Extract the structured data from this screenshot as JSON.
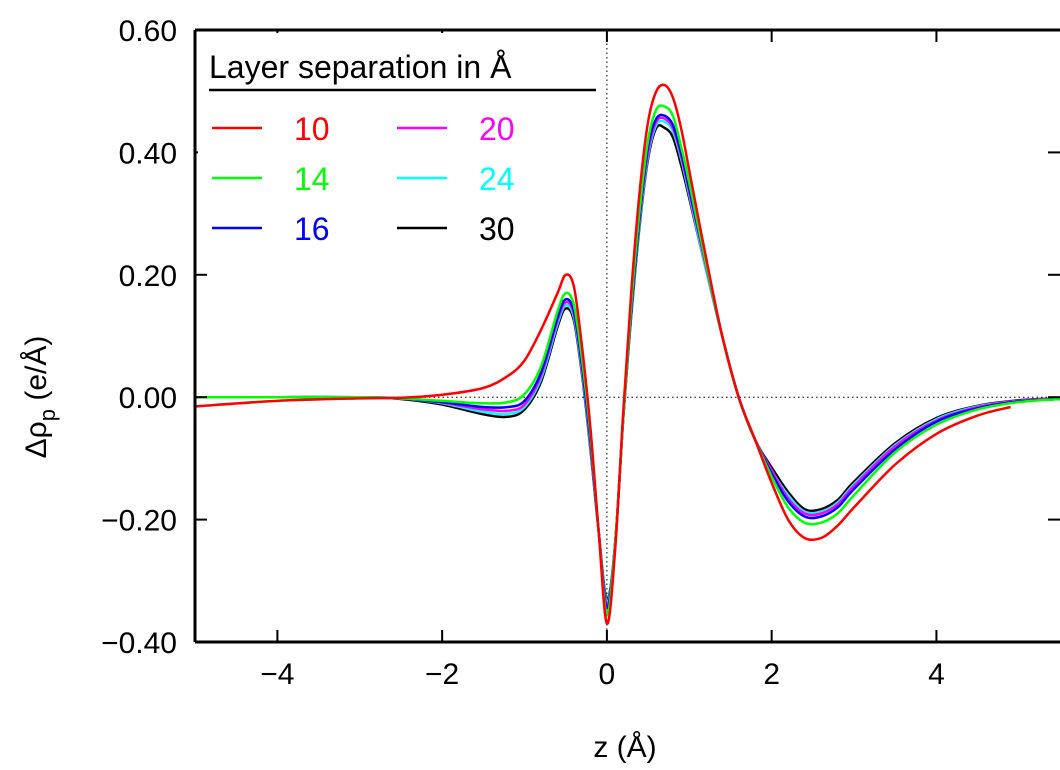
{
  "chart_data": {
    "type": "line",
    "title": "",
    "xlabel": "z (Å)",
    "ylabel_main": "Δρ",
    "ylabel_sub": "p",
    "ylabel_unit": " (e/Å)",
    "xlim": [
      -5,
      5.5
    ],
    "ylim": [
      -0.4,
      0.6
    ],
    "xticks": [
      -4,
      -2,
      0,
      2,
      4
    ],
    "xtick_labels": [
      "−4",
      "−2",
      "0",
      "2",
      "4"
    ],
    "yticks": [
      -0.4,
      -0.2,
      0,
      0.2,
      0.4,
      0.6
    ],
    "ytick_labels": [
      "−0.40",
      "−0.20",
      "0.00",
      "0.20",
      "0.40",
      "0.60"
    ],
    "grid": false,
    "zero_lines": true,
    "legend": {
      "title": "Layer separation in Å",
      "placement": "top-left"
    },
    "series": [
      {
        "name": "10",
        "color": "#ff0000",
        "x": [
          -5,
          -4,
          -3,
          -2.5,
          -2,
          -1.5,
          -1.2,
          -1,
          -0.8,
          -0.6,
          -0.5,
          -0.4,
          -0.3,
          -0.2,
          -0.1,
          0,
          0.1,
          0.2,
          0.3,
          0.4,
          0.5,
          0.6,
          0.7,
          0.8,
          0.9,
          1.0,
          1.2,
          1.4,
          1.6,
          1.8,
          2.0,
          2.2,
          2.4,
          2.6,
          2.8,
          3.0,
          3.5,
          4.0,
          4.5,
          4.9
        ],
        "y": [
          -0.015,
          -0.006,
          -0.002,
          -0.001,
          0.004,
          0.015,
          0.035,
          0.06,
          0.11,
          0.17,
          0.2,
          0.18,
          0.08,
          -0.05,
          -0.22,
          -0.37,
          -0.25,
          -0.02,
          0.18,
          0.34,
          0.45,
          0.5,
          0.51,
          0.49,
          0.44,
          0.37,
          0.23,
          0.1,
          0.0,
          -0.07,
          -0.14,
          -0.2,
          -0.23,
          -0.23,
          -0.21,
          -0.18,
          -0.11,
          -0.06,
          -0.03,
          -0.016
        ]
      },
      {
        "name": "14",
        "color": "#00ff00",
        "x": [
          -5,
          -4,
          -3,
          -2.5,
          -2,
          -1.5,
          -1.2,
          -1,
          -0.8,
          -0.6,
          -0.5,
          -0.4,
          -0.3,
          -0.2,
          -0.1,
          0,
          0.1,
          0.2,
          0.3,
          0.4,
          0.5,
          0.6,
          0.7,
          0.8,
          0.9,
          1.0,
          1.2,
          1.4,
          1.6,
          1.8,
          2.0,
          2.2,
          2.4,
          2.6,
          2.8,
          3.0,
          3.5,
          4.0,
          4.5,
          5.0,
          5.5
        ],
        "y": [
          0.0,
          0.0,
          0.0,
          -0.002,
          -0.006,
          -0.01,
          -0.008,
          0.005,
          0.05,
          0.14,
          0.17,
          0.15,
          0.06,
          -0.06,
          -0.22,
          -0.355,
          -0.24,
          -0.03,
          0.16,
          0.31,
          0.42,
          0.47,
          0.475,
          0.46,
          0.41,
          0.35,
          0.22,
          0.1,
          0.0,
          -0.07,
          -0.13,
          -0.18,
          -0.205,
          -0.205,
          -0.19,
          -0.16,
          -0.09,
          -0.045,
          -0.02,
          -0.008,
          -0.003
        ]
      },
      {
        "name": "16",
        "color": "#0000ff",
        "x": [
          -5,
          -4,
          -3,
          -2.5,
          -2,
          -1.5,
          -1.2,
          -1,
          -0.8,
          -0.6,
          -0.5,
          -0.4,
          -0.3,
          -0.2,
          -0.1,
          0,
          0.1,
          0.2,
          0.3,
          0.4,
          0.5,
          0.6,
          0.7,
          0.8,
          0.9,
          1.0,
          1.2,
          1.4,
          1.6,
          1.8,
          2.0,
          2.2,
          2.4,
          2.6,
          2.8,
          3.0,
          3.5,
          4.0,
          4.5,
          5.0,
          5.5
        ],
        "y": [
          0.0,
          0.0,
          0.0,
          -0.002,
          -0.008,
          -0.016,
          -0.016,
          -0.006,
          0.04,
          0.13,
          0.16,
          0.14,
          0.05,
          -0.07,
          -0.22,
          -0.345,
          -0.24,
          -0.03,
          0.15,
          0.3,
          0.41,
          0.455,
          0.46,
          0.445,
          0.4,
          0.34,
          0.22,
          0.1,
          0.0,
          -0.07,
          -0.125,
          -0.17,
          -0.195,
          -0.195,
          -0.18,
          -0.15,
          -0.085,
          -0.04,
          -0.018,
          -0.007,
          -0.003
        ]
      },
      {
        "name": "20",
        "color": "#ff00ff",
        "x": [
          -5,
          -4,
          -3,
          -2.5,
          -2,
          -1.5,
          -1.2,
          -1,
          -0.8,
          -0.6,
          -0.5,
          -0.4,
          -0.3,
          -0.2,
          -0.1,
          0,
          0.1,
          0.2,
          0.3,
          0.4,
          0.5,
          0.6,
          0.7,
          0.8,
          0.9,
          1.0,
          1.2,
          1.4,
          1.6,
          1.8,
          2.0,
          2.2,
          2.4,
          2.6,
          2.8,
          3.0,
          3.5,
          4.0,
          4.5,
          5.0,
          5.5
        ],
        "y": [
          0.0,
          0.0,
          0.0,
          -0.002,
          -0.009,
          -0.02,
          -0.022,
          -0.012,
          0.035,
          0.125,
          0.155,
          0.135,
          0.045,
          -0.075,
          -0.22,
          -0.34,
          -0.24,
          -0.03,
          0.15,
          0.295,
          0.4,
          0.45,
          0.455,
          0.44,
          0.395,
          0.335,
          0.215,
          0.1,
          0.0,
          -0.07,
          -0.12,
          -0.165,
          -0.19,
          -0.19,
          -0.175,
          -0.145,
          -0.08,
          -0.038,
          -0.016,
          -0.006,
          -0.002
        ]
      },
      {
        "name": "24",
        "color": "#00ffff",
        "x": [
          -5,
          -4,
          -3,
          -2.5,
          -2,
          -1.5,
          -1.2,
          -1,
          -0.8,
          -0.6,
          -0.5,
          -0.4,
          -0.3,
          -0.2,
          -0.1,
          0,
          0.1,
          0.2,
          0.3,
          0.4,
          0.5,
          0.6,
          0.7,
          0.8,
          0.9,
          1.0,
          1.2,
          1.4,
          1.6,
          1.8,
          2.0,
          2.2,
          2.4,
          2.6,
          2.8,
          3.0,
          3.5,
          4.0,
          4.5,
          5.0,
          5.5
        ],
        "y": [
          0.0,
          0.0,
          0.0,
          -0.002,
          -0.01,
          -0.024,
          -0.027,
          -0.016,
          0.03,
          0.12,
          0.15,
          0.13,
          0.04,
          -0.08,
          -0.22,
          -0.335,
          -0.24,
          -0.03,
          0.145,
          0.29,
          0.395,
          0.445,
          0.45,
          0.435,
          0.39,
          0.33,
          0.21,
          0.1,
          0.0,
          -0.07,
          -0.12,
          -0.16,
          -0.187,
          -0.187,
          -0.172,
          -0.142,
          -0.078,
          -0.036,
          -0.015,
          -0.006,
          -0.002
        ]
      },
      {
        "name": "30",
        "color": "#000000",
        "x": [
          -5,
          -4,
          -3,
          -2.5,
          -2,
          -1.5,
          -1.2,
          -1,
          -0.8,
          -0.6,
          -0.5,
          -0.4,
          -0.3,
          -0.2,
          -0.1,
          0,
          0.1,
          0.2,
          0.3,
          0.4,
          0.5,
          0.6,
          0.7,
          0.8,
          0.9,
          1.0,
          1.2,
          1.4,
          1.6,
          1.8,
          2.0,
          2.2,
          2.4,
          2.6,
          2.8,
          3.0,
          3.5,
          4.0,
          4.5,
          5.0,
          5.5
        ],
        "y": [
          0.0,
          0.0,
          0.0,
          -0.003,
          -0.012,
          -0.028,
          -0.032,
          -0.02,
          0.025,
          0.115,
          0.145,
          0.125,
          0.035,
          -0.085,
          -0.22,
          -0.33,
          -0.24,
          -0.03,
          0.14,
          0.285,
          0.39,
          0.44,
          0.44,
          0.425,
          0.38,
          0.325,
          0.21,
          0.1,
          0.0,
          -0.07,
          -0.115,
          -0.155,
          -0.183,
          -0.183,
          -0.168,
          -0.138,
          -0.075,
          -0.034,
          -0.014,
          -0.005,
          -0.002
        ]
      }
    ]
  }
}
